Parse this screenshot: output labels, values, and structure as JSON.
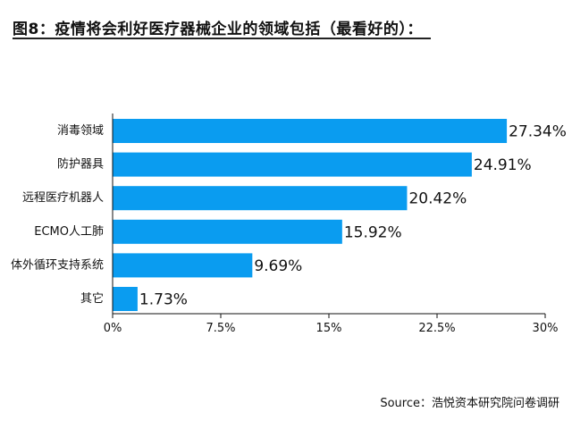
{
  "title": "图8：疫情将会利好医疗器械企业的领域包括（最看好的）：",
  "source": "Source：浩悦资本研究院问卷调研",
  "colors": {
    "bar": "#0a9cf0",
    "axis": "#111111"
  },
  "chart_data": {
    "type": "bar",
    "orientation": "horizontal",
    "categories": [
      "消毒领域",
      "防护器具",
      "远程医疗机器人",
      "ECMO人工肺",
      "体外循环支持系统",
      "其它"
    ],
    "values": [
      27.34,
      24.91,
      20.42,
      15.92,
      9.69,
      1.73
    ],
    "value_labels": [
      "27.34%",
      "24.91%",
      "20.42%",
      "15.92%",
      "9.69%",
      "1.73%"
    ],
    "xlim": [
      0,
      30
    ],
    "xticks": [
      0,
      7.5,
      15,
      22.5,
      30
    ],
    "xtick_labels": [
      "0%",
      "7.5%",
      "15%",
      "22.5%",
      "30%"
    ],
    "grid": false,
    "legend": "none"
  }
}
